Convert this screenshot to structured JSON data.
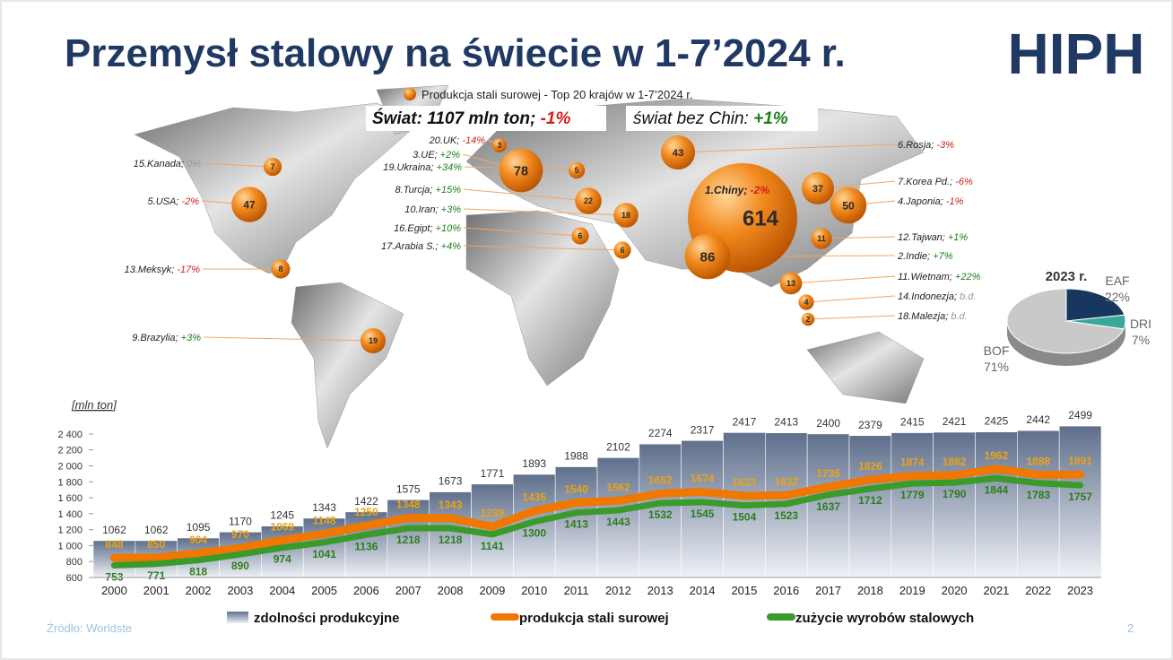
{
  "slide": {
    "title": "Przemysł stalowy na świecie w 1-7’2024 r.",
    "logo": "HIPH",
    "source": "Źródło: Worldste",
    "page": "2"
  },
  "chart_data": [
    {
      "type": "bubble",
      "title": "Produkcja stali surowej - Top 20 krajów w 1-7’2024 r.",
      "annotations": [
        {
          "text": "Świat: 1107 mln ton;",
          "change": "-1%"
        },
        {
          "text": "świat bez Chin:",
          "change": "+1%"
        }
      ],
      "categories": [
        "1.Chiny;",
        "2.Indie;",
        "3.UE;",
        "4.Japonia;",
        "5.USA;",
        "6.Rosja;",
        "7.Korea Pd.;",
        "8.Turcja;",
        "9.Brazylia;",
        "10.Iran;",
        "11.Wietnam;",
        "12.Tajwan;",
        "13.Meksyk;",
        "14.Indonezja;",
        "15.Kanada;",
        "16.Egipt;",
        "17.Arabia S.;",
        "18.Malezja;",
        "19.Ukraina;",
        "20.UK;"
      ],
      "values": [
        614,
        86,
        78,
        50,
        47,
        43,
        37,
        22,
        19,
        18,
        13,
        11,
        8,
        4,
        7,
        6,
        6,
        2,
        5,
        3
      ],
      "changes": [
        "-2%",
        "+7%",
        "+2%",
        "-1%",
        "-2%",
        "-3%",
        "-6%",
        "+15%",
        "+3%",
        "+3%",
        "+22%",
        "+1%",
        "-17%",
        "b.d.",
        "0%",
        "+10%",
        "+4%",
        "b.d.",
        "+34%",
        "-14%"
      ],
      "color": "#f07a10",
      "change_colors": {
        "up": "#1a7f1a",
        "down": "#d0201a",
        "flat": "#999999"
      }
    },
    {
      "type": "pie",
      "title": "2023 r.",
      "categories": [
        "EAF",
        "DRI",
        "BOF"
      ],
      "values": [
        22,
        7,
        71
      ],
      "value_labels": [
        "22%",
        "7%",
        "71%"
      ],
      "colors": [
        "#17375e",
        "#3aa898",
        "#c9c9c9"
      ]
    },
    {
      "type": "bar-line",
      "y_label": "[mln ton]",
      "categories": [
        "2000",
        "2001",
        "2002",
        "2003",
        "2004",
        "2005",
        "2006",
        "2007",
        "2008",
        "2009",
        "2010",
        "2011",
        "2012",
        "2013",
        "2014",
        "2015",
        "2016",
        "2017",
        "2018",
        "2019",
        "2020",
        "2021",
        "2022",
        "2023"
      ],
      "ylim": [
        600,
        2500
      ],
      "yticks": [
        600,
        800,
        {
          "value": 1000,
          "label": "1 000"
        },
        {
          "value": 1200,
          "label": "1 200"
        },
        {
          "value": 1400,
          "label": "1 400"
        },
        {
          "value": 1600,
          "label": "1 600"
        },
        {
          "value": 1800,
          "label": "1 800"
        },
        {
          "value": 2000,
          "label": "2 000"
        },
        {
          "value": 2200,
          "label": "2 200"
        },
        {
          "value": 2400,
          "label": "2 400"
        }
      ],
      "series": [
        {
          "name": "zdolności produkcyjne",
          "kind": "bar",
          "color": "#5f6f8c",
          "values": [
            1062,
            1062,
            1095,
            1170,
            1245,
            1343,
            1422,
            1575,
            1673,
            1771,
            1893,
            1988,
            2102,
            2274,
            2317,
            2417,
            2413,
            2400,
            2379,
            2415,
            2421,
            2425,
            2442,
            2499
          ]
        },
        {
          "name": "produkcja stali surowej",
          "kind": "line",
          "color": "#f07800",
          "label_color": "#e9a416",
          "values": [
            848,
            850,
            904,
            970,
            1069,
            1148,
            1250,
            1348,
            1343,
            1239,
            1435,
            1540,
            1562,
            1652,
            1674,
            1623,
            1632,
            1735,
            1826,
            1874,
            1882,
            1962,
            1888,
            1891
          ]
        },
        {
          "name": "zużycie wyrobów stalowych",
          "kind": "line",
          "color": "#3a9a2a",
          "label_color": "#2e7d1e",
          "values": [
            753,
            771,
            818,
            890,
            974,
            1041,
            1136,
            1218,
            1218,
            1141,
            1300,
            1413,
            1443,
            1532,
            1545,
            1504,
            1523,
            1637,
            1712,
            1779,
            1790,
            1844,
            1783,
            1757
          ]
        }
      ]
    }
  ]
}
